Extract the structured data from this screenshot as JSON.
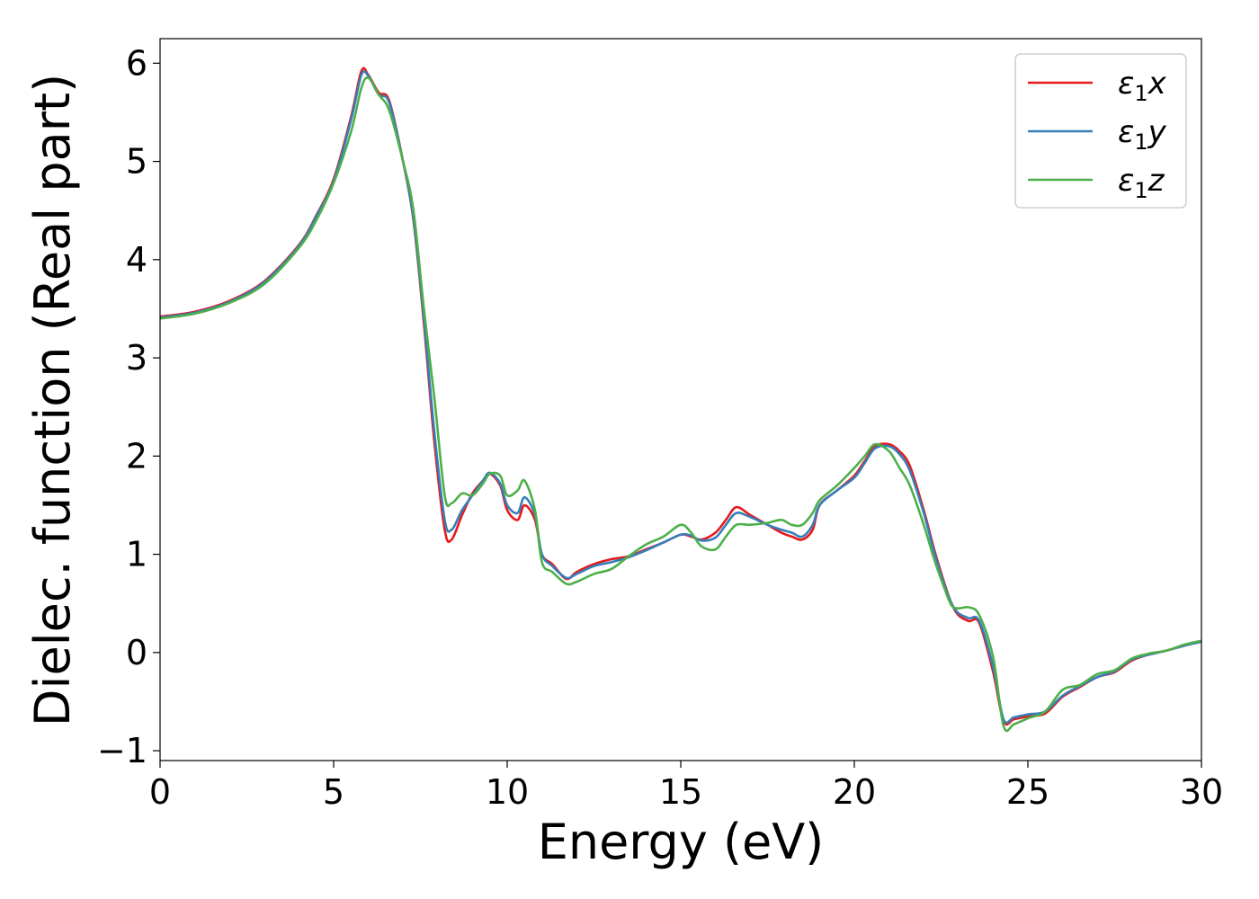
{
  "chart_data": {
    "type": "line",
    "xlabel": "Energy (eV)",
    "ylabel": "Dielec. function (Real part)",
    "xlim": [
      0,
      30
    ],
    "ylim": [
      -1.1,
      6.25
    ],
    "xticks": [
      0,
      5,
      10,
      15,
      20,
      25,
      30
    ],
    "xtick_labels": [
      "0",
      "5",
      "10",
      "15",
      "20",
      "25",
      "30"
    ],
    "yticks": [
      -1,
      0,
      1,
      2,
      3,
      4,
      5,
      6
    ],
    "ytick_labels": [
      "−1",
      "0",
      "1",
      "2",
      "3",
      "4",
      "5",
      "6"
    ],
    "grid": false,
    "legend_position": "top-right",
    "series": [
      {
        "name": "ε1x",
        "color": "#e41a1c",
        "x": [
          0,
          1,
          2,
          3,
          4,
          4.5,
          5,
          5.5,
          5.8,
          6,
          6.3,
          6.6,
          7,
          7.3,
          7.6,
          7.9,
          8.2,
          8.4,
          8.7,
          9,
          9.3,
          9.5,
          9.8,
          10,
          10.3,
          10.5,
          10.8,
          11,
          11.3,
          11.7,
          12,
          12.5,
          13,
          13.5,
          14,
          14.5,
          15,
          15.3,
          15.6,
          16,
          16.3,
          16.6,
          17,
          17.5,
          17.9,
          18.2,
          18.5,
          18.8,
          19,
          19.5,
          20,
          20.3,
          20.6,
          21,
          21.3,
          21.6,
          22,
          22.3,
          22.6,
          22.8,
          23,
          23.3,
          23.6,
          24,
          24.3,
          24.6,
          25,
          25.5,
          26,
          26.5,
          27,
          27.5,
          28,
          28.5,
          29,
          29.5,
          30
        ],
        "y": [
          3.42,
          3.47,
          3.58,
          3.78,
          4.15,
          4.45,
          4.82,
          5.45,
          5.92,
          5.88,
          5.7,
          5.62,
          5.0,
          4.4,
          3.35,
          2.15,
          1.25,
          1.15,
          1.4,
          1.62,
          1.75,
          1.82,
          1.7,
          1.45,
          1.35,
          1.5,
          1.35,
          1.0,
          0.9,
          0.75,
          0.82,
          0.9,
          0.95,
          0.98,
          1.05,
          1.12,
          1.2,
          1.18,
          1.15,
          1.22,
          1.35,
          1.48,
          1.4,
          1.3,
          1.22,
          1.18,
          1.15,
          1.25,
          1.5,
          1.65,
          1.8,
          1.95,
          2.1,
          2.12,
          2.05,
          1.9,
          1.45,
          1.05,
          0.7,
          0.5,
          0.38,
          0.32,
          0.3,
          -0.2,
          -0.7,
          -0.68,
          -0.65,
          -0.62,
          -0.45,
          -0.35,
          -0.25,
          -0.2,
          -0.08,
          -0.02,
          0.02,
          0.07,
          0.11
        ]
      },
      {
        "name": "ε1y",
        "color": "#377eb8",
        "x": [
          0,
          1,
          2,
          3,
          4,
          4.5,
          5,
          5.5,
          5.8,
          6,
          6.3,
          6.6,
          7,
          7.3,
          7.6,
          7.9,
          8.2,
          8.4,
          8.7,
          9,
          9.3,
          9.5,
          9.8,
          10,
          10.3,
          10.5,
          10.8,
          11,
          11.3,
          11.7,
          12,
          12.5,
          13,
          13.5,
          14,
          14.5,
          15,
          15.3,
          15.6,
          16,
          16.3,
          16.6,
          17,
          17.5,
          17.9,
          18.2,
          18.5,
          18.8,
          19,
          19.5,
          20,
          20.3,
          20.6,
          21,
          21.3,
          21.6,
          22,
          22.3,
          22.6,
          22.8,
          23,
          23.3,
          23.6,
          24,
          24.3,
          24.6,
          25,
          25.5,
          26,
          26.5,
          27,
          27.5,
          28,
          28.5,
          29,
          29.5,
          30
        ],
        "y": [
          3.41,
          3.46,
          3.57,
          3.77,
          4.14,
          4.44,
          4.8,
          5.42,
          5.88,
          5.87,
          5.68,
          5.6,
          5.0,
          4.42,
          3.4,
          2.25,
          1.35,
          1.25,
          1.45,
          1.6,
          1.75,
          1.83,
          1.72,
          1.5,
          1.42,
          1.58,
          1.4,
          1.0,
          0.88,
          0.76,
          0.8,
          0.88,
          0.92,
          0.97,
          1.04,
          1.12,
          1.2,
          1.19,
          1.14,
          1.17,
          1.3,
          1.42,
          1.38,
          1.3,
          1.25,
          1.22,
          1.18,
          1.3,
          1.5,
          1.65,
          1.78,
          1.93,
          2.08,
          2.1,
          2.02,
          1.85,
          1.42,
          1.02,
          0.68,
          0.5,
          0.4,
          0.35,
          0.32,
          -0.15,
          -0.68,
          -0.66,
          -0.63,
          -0.6,
          -0.44,
          -0.34,
          -0.25,
          -0.19,
          -0.07,
          -0.02,
          0.02,
          0.07,
          0.11
        ]
      },
      {
        "name": "ε1z",
        "color": "#4daf4a",
        "x": [
          0,
          1,
          2,
          3,
          4,
          4.5,
          5,
          5.5,
          5.8,
          6,
          6.3,
          6.6,
          7,
          7.3,
          7.6,
          7.9,
          8.2,
          8.4,
          8.7,
          9,
          9.3,
          9.5,
          9.8,
          10,
          10.3,
          10.5,
          10.8,
          11,
          11.3,
          11.7,
          12,
          12.5,
          13,
          13.5,
          14,
          14.5,
          15,
          15.3,
          15.6,
          16,
          16.3,
          16.6,
          17,
          17.5,
          17.9,
          18.2,
          18.5,
          18.8,
          19,
          19.5,
          20,
          20.3,
          20.6,
          21,
          21.3,
          21.6,
          22,
          22.3,
          22.6,
          22.8,
          23,
          23.3,
          23.6,
          24,
          24.3,
          24.6,
          25,
          25.5,
          26,
          26.5,
          27,
          27.5,
          28,
          28.5,
          29,
          29.5,
          30
        ],
        "y": [
          3.4,
          3.45,
          3.56,
          3.75,
          4.12,
          4.4,
          4.78,
          5.3,
          5.75,
          5.85,
          5.68,
          5.52,
          5.0,
          4.5,
          3.5,
          2.6,
          1.6,
          1.52,
          1.62,
          1.6,
          1.72,
          1.82,
          1.8,
          1.6,
          1.65,
          1.75,
          1.45,
          0.92,
          0.82,
          0.7,
          0.72,
          0.8,
          0.85,
          0.98,
          1.1,
          1.18,
          1.3,
          1.22,
          1.08,
          1.05,
          1.18,
          1.3,
          1.3,
          1.32,
          1.35,
          1.3,
          1.3,
          1.42,
          1.55,
          1.7,
          1.88,
          2.0,
          2.12,
          2.05,
          1.88,
          1.7,
          1.3,
          0.95,
          0.65,
          0.48,
          0.45,
          0.46,
          0.38,
          -0.05,
          -0.75,
          -0.73,
          -0.67,
          -0.6,
          -0.38,
          -0.33,
          -0.22,
          -0.18,
          -0.06,
          -0.01,
          0.02,
          0.08,
          0.12
        ]
      }
    ]
  },
  "legend": {
    "entries": [
      {
        "base": "ε",
        "sub": "1",
        "var": "x",
        "color": "#e41a1c"
      },
      {
        "base": "ε",
        "sub": "1",
        "var": "y",
        "color": "#377eb8"
      },
      {
        "base": "ε",
        "sub": "1",
        "var": "z",
        "color": "#4daf4a"
      }
    ]
  }
}
